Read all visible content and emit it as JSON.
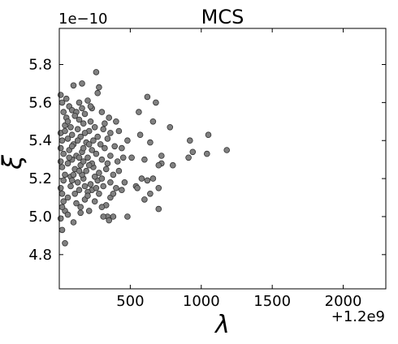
{
  "chart_data": {
    "type": "scatter",
    "title": "MCS",
    "xlabel": "λ",
    "ylabel": "ξ",
    "y_multiplier_text": "1e−10",
    "x_offset_text": "+1.2e9",
    "xlim": [
      0,
      2300
    ],
    "ylim": [
      4.62,
      5.99
    ],
    "x_ticks": [
      500,
      1000,
      1500,
      2000
    ],
    "x_tick_labels": [
      "500",
      "1000",
      "1500",
      "2000"
    ],
    "y_ticks": [
      4.8,
      5.0,
      5.2,
      5.4,
      5.6,
      5.8
    ],
    "y_tick_labels": [
      "4.8",
      "5.0",
      "5.2",
      "5.4",
      "5.6",
      "5.8"
    ],
    "grid": false,
    "legend": "none",
    "marker_color": "#808080",
    "marker_edge_color": "#333333",
    "points": [
      [
        260,
        5.76
      ],
      [
        160,
        5.7
      ],
      [
        100,
        5.69
      ],
      [
        280,
        5.68
      ],
      [
        270,
        5.65
      ],
      [
        620,
        5.63
      ],
      [
        680,
        5.6
      ],
      [
        140,
        5.6
      ],
      [
        560,
        5.55
      ],
      [
        660,
        5.5
      ],
      [
        780,
        5.47
      ],
      [
        420,
        5.45
      ],
      [
        570,
        5.43
      ],
      [
        1050,
        5.43
      ],
      [
        480,
        5.4
      ],
      [
        920,
        5.4
      ],
      [
        640,
        5.39
      ],
      [
        1180,
        5.35
      ],
      [
        940,
        5.34
      ],
      [
        1040,
        5.33
      ],
      [
        720,
        5.32
      ],
      [
        510,
        5.31
      ],
      [
        910,
        5.31
      ],
      [
        600,
        5.3
      ],
      [
        720,
        5.28
      ],
      [
        800,
        5.27
      ],
      [
        700,
        5.27
      ],
      [
        580,
        5.2
      ],
      [
        660,
        5.2
      ],
      [
        620,
        5.19
      ],
      [
        540,
        5.16
      ],
      [
        550,
        5.15
      ],
      [
        700,
        5.15
      ],
      [
        640,
        5.12
      ],
      [
        600,
        5.09
      ],
      [
        700,
        5.04
      ],
      [
        480,
        5.0
      ],
      [
        380,
        5.0
      ],
      [
        340,
        5.0
      ],
      [
        40,
        4.86
      ],
      [
        20,
        4.93
      ],
      [
        10,
        4.99
      ],
      [
        100,
        4.97
      ],
      [
        40,
        5.03
      ],
      [
        20,
        5.05
      ],
      [
        150,
        5.02
      ],
      [
        210,
        5.03
      ],
      [
        250,
        5.08
      ],
      [
        330,
        5.06
      ],
      [
        300,
        5.05
      ],
      [
        360,
        5.1
      ],
      [
        440,
        5.14
      ],
      [
        400,
        5.15
      ],
      [
        460,
        5.18
      ],
      [
        20,
        5.12
      ],
      [
        60,
        5.1
      ],
      [
        110,
        5.12
      ],
      [
        180,
        5.16
      ],
      [
        230,
        5.14
      ],
      [
        280,
        5.12
      ],
      [
        20,
        5.6
      ],
      [
        30,
        5.55
      ],
      [
        70,
        5.58
      ],
      [
        90,
        5.56
      ],
      [
        120,
        5.55
      ],
      [
        180,
        5.54
      ],
      [
        230,
        5.57
      ],
      [
        300,
        5.55
      ],
      [
        350,
        5.52
      ],
      [
        400,
        5.5
      ],
      [
        40,
        5.48
      ],
      [
        80,
        5.47
      ],
      [
        130,
        5.46
      ],
      [
        170,
        5.49
      ],
      [
        210,
        5.45
      ],
      [
        250,
        5.47
      ],
      [
        310,
        5.46
      ],
      [
        360,
        5.44
      ],
      [
        20,
        5.4
      ],
      [
        60,
        5.41
      ],
      [
        100,
        5.38
      ],
      [
        150,
        5.42
      ],
      [
        190,
        5.39
      ],
      [
        240,
        5.4
      ],
      [
        290,
        5.38
      ],
      [
        340,
        5.41
      ],
      [
        390,
        5.37
      ],
      [
        440,
        5.36
      ],
      [
        30,
        5.33
      ],
      [
        70,
        5.35
      ],
      [
        120,
        5.32
      ],
      [
        160,
        5.34
      ],
      [
        200,
        5.31
      ],
      [
        260,
        5.33
      ],
      [
        300,
        5.3
      ],
      [
        360,
        5.32
      ],
      [
        410,
        5.29
      ],
      [
        450,
        5.31
      ],
      [
        20,
        5.26
      ],
      [
        60,
        5.28
      ],
      [
        110,
        5.25
      ],
      [
        150,
        5.27
      ],
      [
        190,
        5.24
      ],
      [
        240,
        5.26
      ],
      [
        280,
        5.23
      ],
      [
        330,
        5.25
      ],
      [
        380,
        5.22
      ],
      [
        420,
        5.24
      ],
      [
        30,
        5.19
      ],
      [
        80,
        5.21
      ],
      [
        130,
        5.18
      ],
      [
        170,
        5.2
      ],
      [
        220,
        5.17
      ],
      [
        270,
        5.19
      ],
      [
        310,
        5.16
      ],
      [
        360,
        5.18
      ],
      [
        50,
        5.52
      ],
      [
        140,
        5.51
      ],
      [
        220,
        5.5
      ],
      [
        320,
        5.49
      ],
      [
        10,
        5.44
      ],
      [
        90,
        5.43
      ],
      [
        180,
        5.44
      ],
      [
        270,
        5.42
      ],
      [
        10,
        5.36
      ],
      [
        90,
        5.37
      ],
      [
        170,
        5.36
      ],
      [
        230,
        5.35
      ],
      [
        320,
        5.36
      ],
      [
        10,
        5.29
      ],
      [
        90,
        5.3
      ],
      [
        170,
        5.29
      ],
      [
        230,
        5.28
      ],
      [
        340,
        5.28
      ],
      [
        40,
        5.22
      ],
      [
        100,
        5.22
      ],
      [
        160,
        5.22
      ],
      [
        250,
        5.21
      ],
      [
        300,
        5.2
      ],
      [
        10,
        5.15
      ],
      [
        80,
        5.16
      ],
      [
        140,
        5.14
      ],
      [
        200,
        5.13
      ],
      [
        260,
        5.15
      ],
      [
        30,
        5.08
      ],
      [
        120,
        5.07
      ],
      [
        180,
        5.09
      ],
      [
        10,
        5.64
      ],
      [
        50,
        5.62
      ],
      [
        200,
        5.61
      ],
      [
        220,
        5.58
      ],
      [
        160,
        5.57
      ],
      [
        110,
        5.53
      ],
      [
        60,
        5.5
      ],
      [
        40,
        5.45
      ],
      [
        130,
        5.4
      ],
      [
        210,
        5.38
      ],
      [
        70,
        5.31
      ],
      [
        140,
        5.31
      ],
      [
        210,
        5.27
      ],
      [
        140,
        5.24
      ],
      [
        90,
        5.19
      ],
      [
        200,
        5.11
      ],
      [
        150,
        5.05
      ],
      [
        60,
        5.01
      ],
      [
        310,
        5.0
      ],
      [
        350,
        4.98
      ],
      [
        380,
        5.12
      ]
    ]
  }
}
